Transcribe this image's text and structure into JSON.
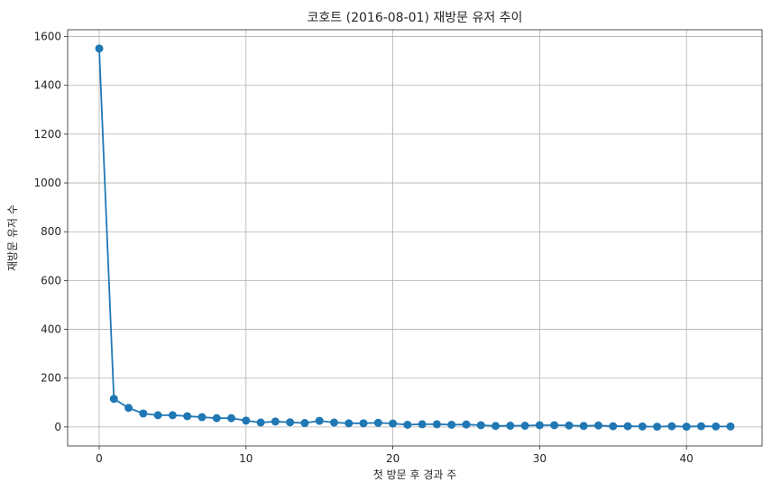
{
  "chart_data": {
    "type": "line",
    "title": "코호트 (2016-08-01) 재방문 유저 추이",
    "xlabel": "첫 방문 후 경과 주",
    "ylabel": "재방문 유저 수",
    "xlim": [
      -2.15,
      45.15
    ],
    "ylim": [
      -78,
      1628
    ],
    "xticks": [
      0,
      10,
      20,
      30,
      40
    ],
    "xtick_labels": [
      "0",
      "10",
      "20",
      "30",
      "40"
    ],
    "yticks": [
      0,
      200,
      400,
      600,
      800,
      1000,
      1200,
      1400,
      1600
    ],
    "ytick_labels": [
      "0",
      "200",
      "400",
      "600",
      "800",
      "1000",
      "1200",
      "1400",
      "1600"
    ],
    "grid": true,
    "legend": "none",
    "color": "#1f77b4",
    "series": [
      {
        "x": [
          0,
          1,
          2,
          3,
          4,
          5,
          6,
          7,
          8,
          9,
          10,
          11,
          12,
          13,
          14,
          15,
          16,
          17,
          18,
          19,
          20,
          21,
          22,
          23,
          24,
          25,
          26,
          27,
          28,
          29,
          30,
          31,
          32,
          33,
          34,
          35,
          36,
          37,
          38,
          39,
          40,
          41,
          42,
          43
        ],
        "values": [
          1551,
          115,
          78,
          55,
          48,
          48,
          44,
          40,
          36,
          36,
          26,
          18,
          22,
          19,
          16,
          25,
          18,
          15,
          15,
          17,
          14,
          9,
          11,
          11,
          9,
          10,
          7,
          4,
          5,
          5,
          7,
          7,
          6,
          4,
          6,
          3,
          3,
          2,
          1,
          3,
          1,
          3,
          2,
          2
        ]
      }
    ]
  }
}
